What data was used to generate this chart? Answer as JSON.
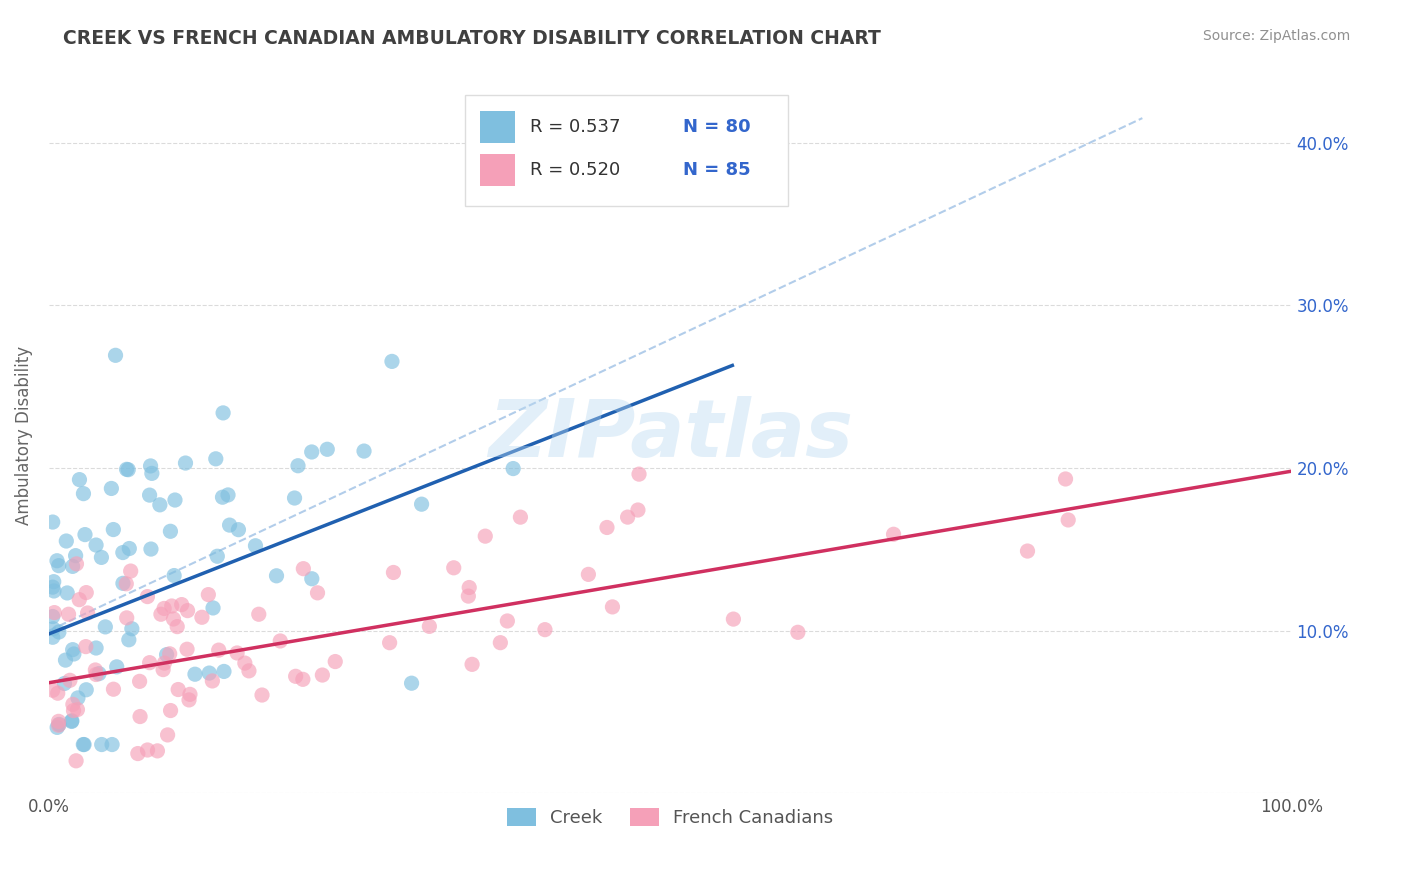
{
  "title": "CREEK VS FRENCH CANADIAN AMBULATORY DISABILITY CORRELATION CHART",
  "source_text": "Source: ZipAtlas.com",
  "ylabel": "Ambulatory Disability",
  "creek_R": 0.537,
  "creek_N": 80,
  "fc_R": 0.52,
  "fc_N": 85,
  "creek_color": "#7fbfdf",
  "creek_line_color": "#2060b0",
  "fc_color": "#f5a0b8",
  "fc_line_color": "#d03060",
  "watermark": "ZIPatlas",
  "xlim": [
    0.0,
    1.0
  ],
  "ylim": [
    0.0,
    0.44
  ],
  "x_ticks": [
    0.0,
    0.1,
    0.2,
    0.3,
    0.4,
    0.5,
    0.6,
    0.7,
    0.8,
    0.9,
    1.0
  ],
  "x_tick_labels": [
    "0.0%",
    "",
    "",
    "",
    "",
    "",
    "",
    "",
    "",
    "",
    "100.0%"
  ],
  "y_ticks": [
    0.0,
    0.1,
    0.2,
    0.3,
    0.4
  ],
  "y_tick_labels_right": [
    "",
    "10.0%",
    "20.0%",
    "30.0%",
    "40.0%"
  ],
  "legend_label_creek": "Creek",
  "legend_label_fc": "French Canadians",
  "background_color": "#ffffff",
  "grid_color": "#cccccc",
  "title_color": "#404040",
  "source_color": "#909090",
  "legend_text_color": "#3366cc",
  "creek_line_x0": 0.0,
  "creek_line_y0": 0.098,
  "creek_line_x1": 0.5,
  "creek_line_y1": 0.248,
  "fc_line_x0": 0.0,
  "fc_line_y0": 0.068,
  "fc_line_x1": 1.0,
  "fc_line_y1": 0.198,
  "dash_line_x0": 0.0,
  "dash_line_y0": 0.1,
  "dash_line_x1": 0.88,
  "dash_line_y1": 0.415
}
